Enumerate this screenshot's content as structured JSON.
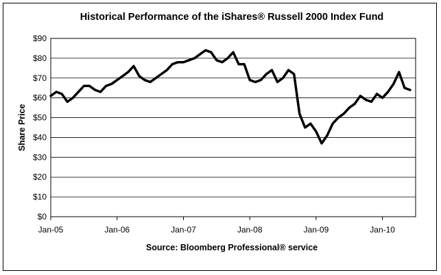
{
  "chart_data": {
    "type": "line",
    "title": "Historical Performance of the iShares® Russell 2000 Index Fund",
    "ylabel": "Share Price",
    "xlabel": "",
    "source": "Source: Bloomberg  Professional® service",
    "ylim": [
      0,
      90
    ],
    "y_ticks": [
      "$0",
      "$10",
      "$20",
      "$30",
      "$40",
      "$50",
      "$60",
      "$70",
      "$80",
      "$90"
    ],
    "y_tick_values": [
      0,
      10,
      20,
      30,
      40,
      50,
      60,
      70,
      80,
      90
    ],
    "x_ticks": [
      "Jan-05",
      "Jan-06",
      "Jan-07",
      "Jan-08",
      "Jan-09",
      "Jan-10"
    ],
    "x_tick_values": [
      "2005-01",
      "2006-01",
      "2007-01",
      "2008-01",
      "2009-01",
      "2010-01"
    ],
    "xlim": [
      "2005-01",
      "2010-07"
    ],
    "grid": "horizontal",
    "legend": "none",
    "line_color": "#000000",
    "series": [
      {
        "x": [
          "2005-01",
          "2005-02",
          "2005-03",
          "2005-04",
          "2005-05",
          "2005-06",
          "2005-07",
          "2005-08",
          "2005-09",
          "2005-10",
          "2005-11",
          "2005-12",
          "2006-01",
          "2006-02",
          "2006-03",
          "2006-04",
          "2006-05",
          "2006-06",
          "2006-07",
          "2006-08",
          "2006-09",
          "2006-10",
          "2006-11",
          "2006-12",
          "2007-01",
          "2007-02",
          "2007-03",
          "2007-04",
          "2007-05",
          "2007-06",
          "2007-07",
          "2007-08",
          "2007-09",
          "2007-10",
          "2007-11",
          "2007-12",
          "2008-01",
          "2008-02",
          "2008-03",
          "2008-04",
          "2008-05",
          "2008-06",
          "2008-07",
          "2008-08",
          "2008-09",
          "2008-10",
          "2008-11",
          "2008-12",
          "2009-01",
          "2009-02",
          "2009-03",
          "2009-04",
          "2009-05",
          "2009-06",
          "2009-07",
          "2009-08",
          "2009-09",
          "2009-10",
          "2009-11",
          "2009-12",
          "2010-01",
          "2010-02",
          "2010-03",
          "2010-04",
          "2010-05",
          "2010-06"
        ],
        "values": [
          61,
          63,
          62,
          58,
          60,
          63,
          66,
          66,
          64,
          63,
          66,
          67,
          69,
          71,
          73,
          76,
          71,
          69,
          68,
          70,
          72,
          74,
          77,
          78,
          78,
          79,
          80,
          82,
          84,
          83,
          79,
          78,
          80,
          83,
          77,
          77,
          69,
          68,
          69,
          72,
          74,
          68,
          70,
          74,
          72,
          52,
          45,
          47,
          43,
          37,
          41,
          47,
          50,
          52,
          55,
          57,
          61,
          59,
          58,
          62,
          60,
          63,
          67,
          73,
          65,
          64
        ]
      }
    ]
  }
}
